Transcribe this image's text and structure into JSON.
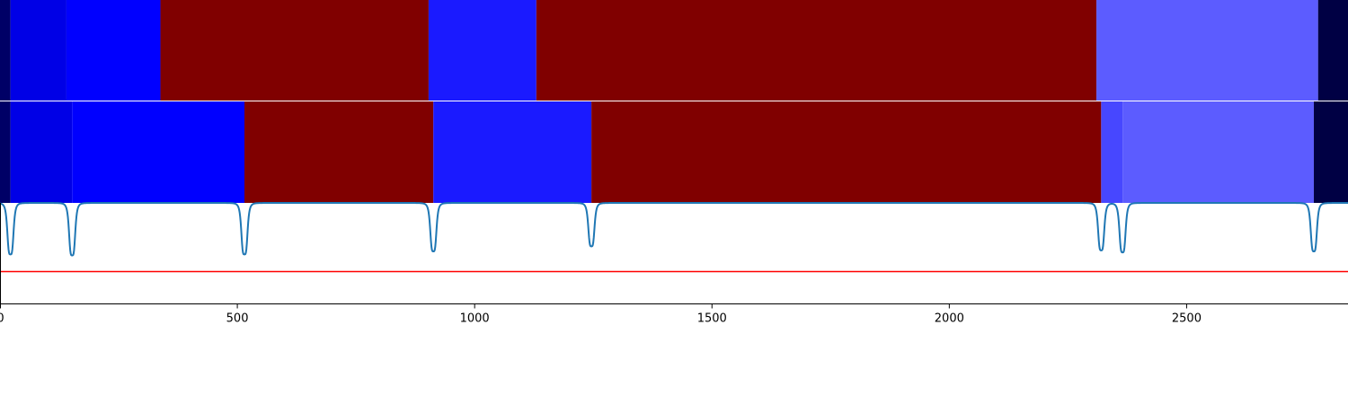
{
  "chart_data": [
    {
      "type": "heatmap",
      "title": "",
      "xlim": [
        0,
        2840
      ],
      "segments": [
        {
          "start": 0,
          "end": 22,
          "color": "#000066"
        },
        {
          "start": 22,
          "end": 140,
          "color": "#0000e6"
        },
        {
          "start": 140,
          "end": 338,
          "color": "#0000ff"
        },
        {
          "start": 338,
          "end": 903,
          "color": "#800000"
        },
        {
          "start": 903,
          "end": 1130,
          "color": "#1a1aff"
        },
        {
          "start": 1130,
          "end": 2310,
          "color": "#800000"
        },
        {
          "start": 2310,
          "end": 2777,
          "color": "#5c5cff"
        },
        {
          "start": 2777,
          "end": 2840,
          "color": "#000044"
        }
      ]
    },
    {
      "type": "heatmap",
      "title": "",
      "xlim": [
        0,
        2840
      ],
      "segments": [
        {
          "start": 0,
          "end": 22,
          "color": "#000066"
        },
        {
          "start": 22,
          "end": 152,
          "color": "#0000e6"
        },
        {
          "start": 152,
          "end": 515,
          "color": "#0000ff"
        },
        {
          "start": 515,
          "end": 913,
          "color": "#800000"
        },
        {
          "start": 913,
          "end": 1246,
          "color": "#1a1aff"
        },
        {
          "start": 1246,
          "end": 2320,
          "color": "#800000"
        },
        {
          "start": 2320,
          "end": 2365,
          "color": "#4747ff"
        },
        {
          "start": 2365,
          "end": 2768,
          "color": "#5c5cff"
        },
        {
          "start": 2768,
          "end": 2840,
          "color": "#000044"
        }
      ]
    },
    {
      "type": "line",
      "title": "",
      "xlabel": "",
      "ylabel": "",
      "xlim": [
        0,
        2840
      ],
      "ylim": [
        0,
        1
      ],
      "xticks": [
        0,
        500,
        1000,
        1500,
        2000,
        2500
      ],
      "xtick_labels": [
        "0",
        "500",
        "1000",
        "1500",
        "2000",
        "2500"
      ],
      "threshold": 0.32,
      "series": [
        {
          "color": "#1f77b4",
          "baseline": 1.0,
          "dips": [
            {
              "x": 22,
              "depth": 0.51
            },
            {
              "x": 152,
              "depth": 0.52
            },
            {
              "x": 515,
              "depth": 0.51
            },
            {
              "x": 913,
              "depth": 0.48
            },
            {
              "x": 1246,
              "depth": 0.43
            },
            {
              "x": 2320,
              "depth": 0.47
            },
            {
              "x": 2365,
              "depth": 0.49
            },
            {
              "x": 2768,
              "depth": 0.48
            }
          ]
        }
      ],
      "threshold_color": "#ff0000"
    }
  ]
}
